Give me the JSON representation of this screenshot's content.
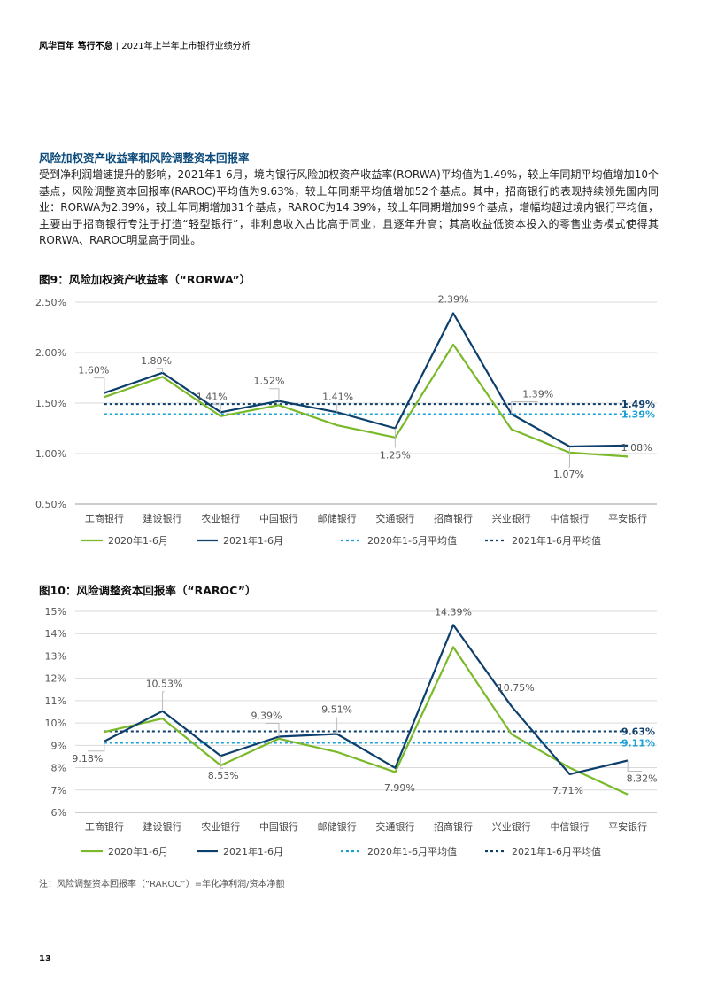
{
  "header": {
    "brand": "风华百年 笃行不怠",
    "sep": " | ",
    "title": "2021年上半年上市银行业绩分析"
  },
  "section": {
    "title": "风险加权资产收益率和风险调整资本回报率",
    "paragraph": "受到净利润增速提升的影响，2021年1-6月，境内银行风险加权资产收益率(RORWA)平均值为1.49%，较上年同期平均值增加10个基点，风险调整资本回报率(RAROC)平均值为9.63%，较上年同期平均值增加52个基点。其中，招商银行的表现持续领先国内同业：RORWA为2.39%，较上年同期增加31个基点，RAROC为14.39%，较上年同期增加99个基点，增幅均超过境内银行平均值，主要由于招商银行专注于打造“轻型银行”，非利息收入占比高于同业，且逐年升高；其高收益低资本投入的零售业务模式使得其RORWA、RAROC明显高于同业。"
  },
  "colors": {
    "green": "#7ab929",
    "navy": "#0c3f6b",
    "cyan": "#1aa0d8",
    "grid": "#d9d9d9",
    "axis": "#555555"
  },
  "chart_data": [
    {
      "type": "line",
      "title": "图9：风险加权资产收益率（“RORWA”）",
      "categories": [
        "工商银行",
        "建设银行",
        "农业银行",
        "中国银行",
        "邮储银行",
        "交通银行",
        "招商银行",
        "兴业银行",
        "中信银行",
        "平安银行"
      ],
      "y_ticks": [
        "2.50%",
        "2.00%",
        "1.50%",
        "1.00%",
        "0.50%"
      ],
      "ylim": [
        0.5,
        2.5
      ],
      "series": [
        {
          "name": "2020年1-6月",
          "values": [
            1.56,
            1.76,
            1.37,
            1.48,
            1.28,
            1.16,
            2.08,
            1.24,
            1.01,
            0.97
          ]
        },
        {
          "name": "2021年1-6月",
          "values": [
            1.6,
            1.8,
            1.41,
            1.52,
            1.41,
            1.25,
            2.39,
            1.39,
            1.07,
            1.08
          ]
        }
      ],
      "averages": [
        {
          "name": "2020年1-6月平均值",
          "value": 1.39,
          "label": "1.39%"
        },
        {
          "name": "2021年1-6月平均值",
          "value": 1.49,
          "label": "1.49%"
        }
      ],
      "labels": [
        "1.60%",
        "1.80%",
        "1.41%",
        "1.52%",
        "1.41%",
        "1.25%",
        "2.39%",
        "1.39%",
        "1.07%",
        "1.08%"
      ]
    },
    {
      "type": "line",
      "title": "图10：风险调整资本回报率（“RAROC”）",
      "categories": [
        "工商银行",
        "建设银行",
        "农业银行",
        "中国银行",
        "邮储银行",
        "交通银行",
        "招商银行",
        "兴业银行",
        "中信银行",
        "平安银行"
      ],
      "y_ticks": [
        "15%",
        "14%",
        "13%",
        "12%",
        "11%",
        "10%",
        "9%",
        "8%",
        "7%",
        "6%"
      ],
      "ylim": [
        6,
        15
      ],
      "series": [
        {
          "name": "2020年1-6月",
          "values": [
            9.6,
            10.2,
            8.1,
            9.3,
            8.7,
            7.8,
            13.4,
            9.5,
            8.0,
            6.8
          ]
        },
        {
          "name": "2021年1-6月",
          "values": [
            9.18,
            10.53,
            8.53,
            9.39,
            9.51,
            7.99,
            14.39,
            10.75,
            7.71,
            8.32
          ]
        }
      ],
      "averages": [
        {
          "name": "2020年1-6月平均值",
          "value": 9.11,
          "label": "9.11%"
        },
        {
          "name": "2021年1-6月平均值",
          "value": 9.63,
          "label": "9.63%"
        }
      ],
      "labels": [
        "9.18%",
        "10.53%",
        "8.53%",
        "9.39%",
        "9.51%",
        "7.99%",
        "14.39%",
        "10.75%",
        "7.71%",
        "8.32%"
      ]
    }
  ],
  "legend": [
    "2020年1-6月",
    "2021年1-6月",
    "2020年1-6月平均值",
    "2021年1-6月平均值"
  ],
  "note": "注：风险调整资本回报率（“RAROC”）=年化净利润/资本净额",
  "page_number": "13"
}
